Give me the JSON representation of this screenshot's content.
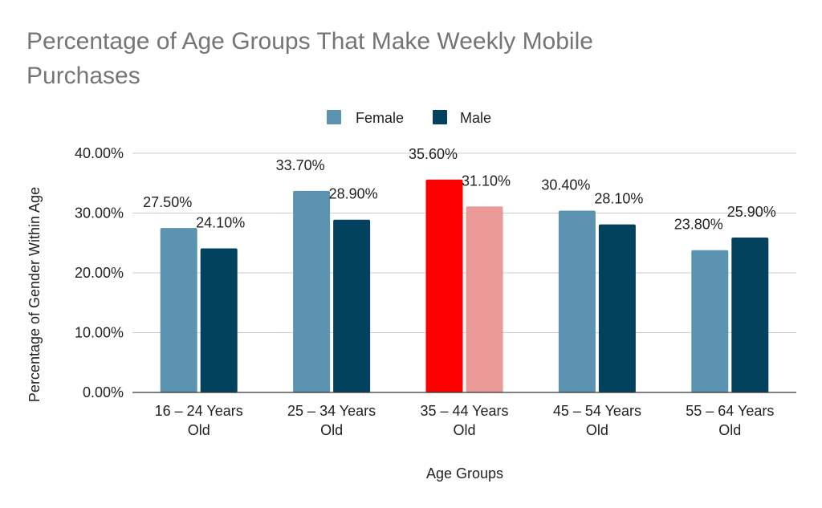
{
  "chart_data": {
    "type": "bar",
    "title_lines": [
      "Percentage of Age Groups That Make Weekly Mobile",
      "Purchases"
    ],
    "xlabel": "Age Groups",
    "ylabel": "Percentage of Gender Within Age",
    "ylim": [
      0,
      40
    ],
    "yticks": [
      0,
      10,
      20,
      30,
      40
    ],
    "ytick_labels": [
      "0.00%",
      "10.00%",
      "20.00%",
      "30.00%",
      "40.00%"
    ],
    "grid": true,
    "legend_position": "top-center",
    "categories": [
      [
        "16 – 24 Years",
        "Old"
      ],
      [
        "25 – 34 Years",
        "Old"
      ],
      [
        "35 – 44 Years",
        "Old"
      ],
      [
        "45 – 54 Years",
        "Old"
      ],
      [
        "55 – 64 Years",
        "Old"
      ]
    ],
    "series": [
      {
        "name": "Female",
        "color": "#5b93b0",
        "values": [
          27.5,
          33.7,
          35.6,
          30.4,
          23.8
        ],
        "labels": [
          "27.50%",
          "33.70%",
          "35.60%",
          "30.40%",
          "23.80%"
        ]
      },
      {
        "name": "Male",
        "color": "#02425e",
        "values": [
          24.1,
          28.9,
          31.1,
          28.1,
          25.9
        ],
        "labels": [
          "24.10%",
          "28.90%",
          "31.10%",
          "28.10%",
          "25.90%"
        ]
      }
    ],
    "highlight": {
      "category_index": 2,
      "colors": [
        "#ff0000",
        "#ea9999"
      ]
    }
  }
}
